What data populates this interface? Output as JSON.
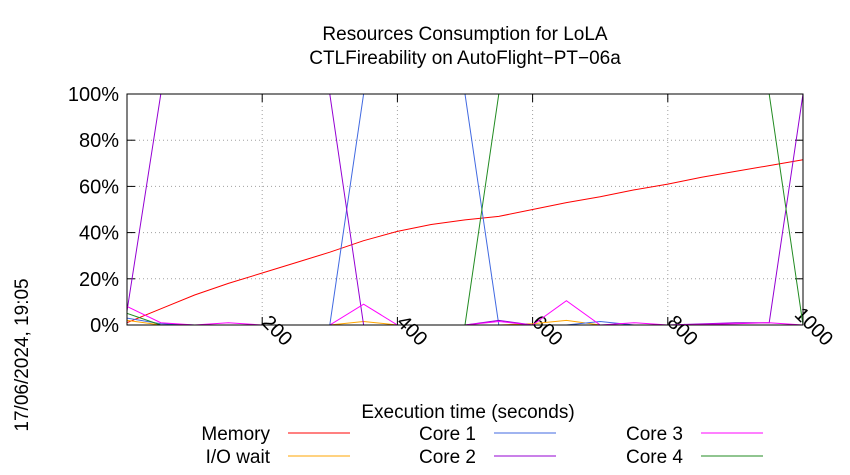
{
  "chart_data": {
    "type": "line",
    "title": [
      "Resources Consumption for LoLA",
      "CTLFireability on AutoFlight−PT−06a"
    ],
    "xlabel": "Execution time (seconds)",
    "ylabel": "",
    "xlim": [
      0,
      1000
    ],
    "ylim": [
      0,
      100
    ],
    "xticks": [
      200,
      400,
      600,
      800,
      1000
    ],
    "yticks": [
      0,
      20,
      40,
      60,
      80,
      100
    ],
    "xtick_labels": [
      "200",
      "400",
      "600",
      "800",
      "1000"
    ],
    "ytick_labels": [
      "0%",
      "20%",
      "40%",
      "60%",
      "80%",
      "100%"
    ],
    "grid": true,
    "legend_position": "bottom",
    "timestamp": "17/06/2024, 19:05",
    "series": [
      {
        "name": "Memory",
        "color": "#ff0000",
        "points": [
          [
            0,
            1
          ],
          [
            50,
            7
          ],
          [
            100,
            13
          ],
          [
            150,
            18
          ],
          [
            200,
            22.5
          ],
          [
            250,
            27
          ],
          [
            300,
            31.5
          ],
          [
            350,
            36.5
          ],
          [
            400,
            40.5
          ],
          [
            450,
            43.5
          ],
          [
            500,
            45.5
          ],
          [
            550,
            47
          ],
          [
            600,
            50
          ],
          [
            650,
            53
          ],
          [
            700,
            55.5
          ],
          [
            750,
            58.5
          ],
          [
            800,
            61
          ],
          [
            850,
            64
          ],
          [
            900,
            66.5
          ],
          [
            950,
            69
          ],
          [
            1000,
            71.5
          ]
        ]
      },
      {
        "name": "I/O wait",
        "color": "#ffa500",
        "points": [
          [
            0,
            2
          ],
          [
            50,
            0
          ],
          [
            100,
            0
          ],
          [
            300,
            0
          ],
          [
            350,
            1.5
          ],
          [
            400,
            0
          ],
          [
            500,
            0
          ],
          [
            550,
            0
          ],
          [
            600,
            0.5
          ],
          [
            650,
            2
          ],
          [
            700,
            0
          ],
          [
            750,
            0
          ],
          [
            1000,
            0
          ]
        ]
      },
      {
        "name": "Core 1",
        "color": "#4169e1",
        "points": [
          [
            0,
            3
          ],
          [
            50,
            0.5
          ],
          [
            100,
            0
          ],
          [
            300,
            0
          ],
          [
            350,
            100
          ],
          [
            400,
            100
          ],
          [
            450,
            100
          ],
          [
            500,
            100
          ],
          [
            550,
            0
          ],
          [
            600,
            0
          ],
          [
            650,
            0
          ],
          [
            700,
            1.5
          ],
          [
            750,
            0
          ],
          [
            1000,
            0
          ]
        ]
      },
      {
        "name": "Core 2",
        "color": "#9400d3",
        "points": [
          [
            0,
            6
          ],
          [
            50,
            100
          ],
          [
            100,
            100
          ],
          [
            150,
            100
          ],
          [
            200,
            100
          ],
          [
            250,
            100
          ],
          [
            300,
            100
          ],
          [
            350,
            0
          ],
          [
            400,
            0
          ],
          [
            500,
            0
          ],
          [
            550,
            2
          ],
          [
            600,
            0
          ],
          [
            650,
            0
          ],
          [
            700,
            0
          ],
          [
            800,
            0
          ],
          [
            900,
            1
          ],
          [
            950,
            1
          ],
          [
            1000,
            100
          ]
        ]
      },
      {
        "name": "Core 3",
        "color": "#ff00ff",
        "points": [
          [
            0,
            8
          ],
          [
            50,
            1
          ],
          [
            100,
            0
          ],
          [
            150,
            1
          ],
          [
            200,
            0
          ],
          [
            300,
            0
          ],
          [
            350,
            9
          ],
          [
            400,
            0
          ],
          [
            500,
            0
          ],
          [
            550,
            1.5
          ],
          [
            600,
            0
          ],
          [
            650,
            10.5
          ],
          [
            700,
            0
          ],
          [
            750,
            1
          ],
          [
            800,
            0
          ],
          [
            900,
            0.5
          ],
          [
            950,
            1
          ],
          [
            1000,
            0
          ]
        ]
      },
      {
        "name": "Core 4",
        "color": "#228b22",
        "points": [
          [
            0,
            5
          ],
          [
            50,
            0
          ],
          [
            100,
            0
          ],
          [
            300,
            0
          ],
          [
            350,
            0
          ],
          [
            400,
            0
          ],
          [
            500,
            0
          ],
          [
            550,
            100
          ],
          [
            600,
            100
          ],
          [
            650,
            100
          ],
          [
            700,
            100
          ],
          [
            750,
            100
          ],
          [
            800,
            100
          ],
          [
            850,
            100
          ],
          [
            900,
            100
          ],
          [
            950,
            100
          ],
          [
            1000,
            0
          ]
        ]
      }
    ]
  }
}
